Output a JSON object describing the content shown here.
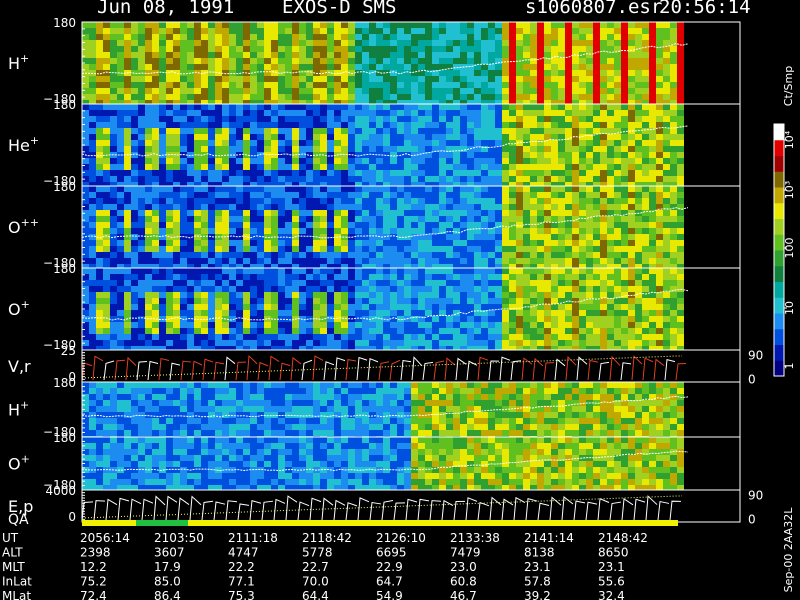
{
  "header": {
    "date": "Jun 08, 1991",
    "instrument": "EXOS-D SMS",
    "file": "s1060807.esr",
    "time": "20:56:14"
  },
  "colorbar": {
    "unit": "Ct/Smp",
    "tick_labels": [
      "1",
      "10",
      "100",
      "10³",
      "10⁴"
    ],
    "colors": [
      "#000080",
      "#0018b0",
      "#0050e0",
      "#1c8cf0",
      "#20c0d0",
      "#00a8a0",
      "#108040",
      "#30a030",
      "#60c020",
      "#a0d020",
      "#e8e800",
      "#c0a800",
      "#806800",
      "#a00000",
      "#e00000",
      "#ffffff"
    ]
  },
  "footer": {
    "side_label": "Sep-00 2AA32L"
  },
  "chart_data": {
    "type": "heatmap",
    "panels": [
      {
        "name": "H+",
        "label": "H",
        "sup": "+",
        "ymax": "180",
        "ymin": "−180"
      },
      {
        "name": "He+",
        "label": "He",
        "sup": "+",
        "ymax": "180",
        "ymin": "−180"
      },
      {
        "name": "O++",
        "label": "O",
        "sup": "++",
        "ymax": "180",
        "ymin": "−180"
      },
      {
        "name": "O+",
        "label": "O",
        "sup": "+",
        "ymax": "180",
        "ymin": "−180"
      },
      {
        "name": "V,r",
        "label": "V,r",
        "sup": "",
        "ymax": "25",
        "ymin": "0",
        "right_top": "90",
        "right_bottom": "0"
      },
      {
        "name": "H+ (2)",
        "label": "H",
        "sup": "+",
        "ymax": "180",
        "ymin": "−180"
      },
      {
        "name": "O+ (2)",
        "label": "O",
        "sup": "+",
        "ymax": "180",
        "ymin": "−180"
      },
      {
        "name": "E,p",
        "label": "E,p",
        "sup": "",
        "ymax": "4000",
        "ymin": "0",
        "right_top": "90",
        "right_bottom": "0"
      }
    ],
    "qa_label": "QA",
    "table": {
      "rows": [
        {
          "name": "UT",
          "values": [
            "2056:14",
            "2103:50",
            "2111:18",
            "2118:42",
            "2126:10",
            "2133:38",
            "2141:14",
            "2148:42"
          ]
        },
        {
          "name": "ALT",
          "values": [
            "2398",
            "3607",
            "4747",
            "5778",
            "6695",
            "7479",
            "8138",
            "8650"
          ]
        },
        {
          "name": "MLT",
          "values": [
            "12.2",
            "17.9",
            "22.2",
            "22.7",
            "22.9",
            "23.0",
            "23.1",
            "23.1"
          ]
        },
        {
          "name": "InLat",
          "values": [
            "75.2",
            "85.0",
            "77.1",
            "70.0",
            "64.7",
            "60.8",
            "57.8",
            "55.6"
          ]
        },
        {
          "name": "MLat",
          "values": [
            "72.4",
            "86.4",
            "75.3",
            "64.4",
            "54.9",
            "46.7",
            "39.2",
            "32.4"
          ]
        }
      ]
    }
  }
}
